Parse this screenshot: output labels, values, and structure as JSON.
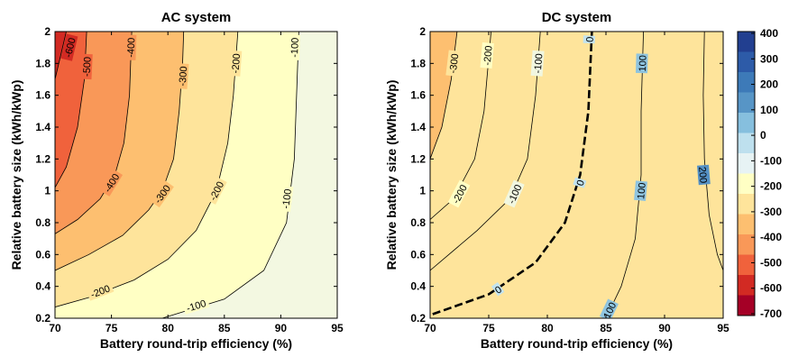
{
  "chart_data": [
    {
      "type": "contour",
      "title": "AC system",
      "xlabel": "Battery round-trip efficiency (%)",
      "ylabel": "Relative battery size (kWh/kWp)",
      "xlim": [
        70,
        95
      ],
      "ylim": [
        0.2,
        2
      ],
      "xticks": [
        "70",
        "75",
        "80",
        "85",
        "90",
        "95"
      ],
      "yticks": [
        "0.2",
        "0.4",
        "0.6",
        "0.8",
        "1",
        "1.2",
        "1.4",
        "1.6",
        "1.8",
        "2"
      ],
      "background_level_color": "#f3f8e1",
      "contours": [
        {
          "level": -100,
          "fill": "#ffffc4",
          "points": [
            [
              79.5,
              0.2
            ],
            [
              85,
              0.32
            ],
            [
              88.5,
              0.5
            ],
            [
              90.5,
              0.8
            ],
            [
              91.2,
              1.2
            ],
            [
              91.6,
              2.0
            ]
          ],
          "labels": [
            {
              "text": "-100",
              "x": 82.5,
              "y": 0.28
            },
            {
              "text": "-100",
              "x": 90.5,
              "y": 0.95
            },
            {
              "text": "-100",
              "x": 91.2,
              "y": 1.9
            }
          ]
        },
        {
          "level": -200,
          "fill": "#fee49b",
          "points": [
            [
              70,
              0.27
            ],
            [
              73,
              0.33
            ],
            [
              77,
              0.44
            ],
            [
              80,
              0.57
            ],
            [
              82.5,
              0.75
            ],
            [
              84.3,
              1.0
            ],
            [
              85.3,
              1.3
            ],
            [
              85.8,
              1.6
            ],
            [
              86.2,
              2.0
            ]
          ],
          "labels": [
            {
              "text": "-200",
              "x": 74,
              "y": 0.37
            },
            {
              "text": "-200",
              "x": 84.3,
              "y": 1.0
            },
            {
              "text": "-200",
              "x": 86.0,
              "y": 1.8
            }
          ]
        },
        {
          "level": -300,
          "fill": "#fdbf70",
          "points": [
            [
              70,
              0.5
            ],
            [
              73,
              0.6
            ],
            [
              76,
              0.72
            ],
            [
              78.3,
              0.88
            ],
            [
              79.5,
              1.0
            ],
            [
              80.5,
              1.2
            ],
            [
              81,
              1.5
            ],
            [
              81.3,
              1.8
            ],
            [
              81.4,
              2.0
            ]
          ],
          "labels": [
            {
              "text": "-300",
              "x": 79.5,
              "y": 0.98
            },
            {
              "text": "-300",
              "x": 81.3,
              "y": 1.72
            }
          ]
        },
        {
          "level": -400,
          "fill": "#f99858",
          "points": [
            [
              70,
              0.73
            ],
            [
              72,
              0.82
            ],
            [
              74,
              0.95
            ],
            [
              75.3,
              1.1
            ],
            [
              76.1,
              1.3
            ],
            [
              76.6,
              1.6
            ],
            [
              76.8,
              2.0
            ]
          ],
          "labels": [
            {
              "text": "-400",
              "x": 75,
              "y": 1.05
            },
            {
              "text": "-400",
              "x": 76.7,
              "y": 1.9
            }
          ]
        },
        {
          "level": -500,
          "fill": "#f0623c",
          "points": [
            [
              70,
              1.02
            ],
            [
              71,
              1.15
            ],
            [
              72,
              1.4
            ],
            [
              72.6,
              1.7
            ],
            [
              72.8,
              2.0
            ]
          ],
          "labels": [
            {
              "text": "-500",
              "x": 72.8,
              "y": 1.78
            }
          ]
        },
        {
          "level": -600,
          "fill": "#d22a23",
          "points": [
            [
              70,
              1.7
            ],
            [
              70.5,
              1.85
            ],
            [
              71,
              2.0
            ]
          ],
          "labels": [
            {
              "text": "-600",
              "x": 71.3,
              "y": 1.9
            }
          ]
        }
      ]
    },
    {
      "type": "contour",
      "title": "DC system",
      "xlabel": "Battery round-trip efficiency (%)",
      "ylabel": "Relative battery size (kWh/kWp)",
      "xlim": [
        70,
        95
      ],
      "ylim": [
        0.2,
        2
      ],
      "xticks": [
        "70",
        "75",
        "80",
        "85",
        "90",
        "95"
      ],
      "yticks": [
        "0.2",
        "0.4",
        "0.6",
        "0.8",
        "1",
        "1.2",
        "1.4",
        "1.6",
        "1.8",
        "2"
      ],
      "colorbar": {
        "ticks": [
          "400",
          "300",
          "200",
          "100",
          "0",
          "-100",
          "-200",
          "-300",
          "-400",
          "-500",
          "-600",
          "-700"
        ],
        "colors": [
          "#223f90",
          "#2d5ba8",
          "#3d7ab8",
          "#5795c6",
          "#86bfde",
          "#bee0ee",
          "#e7f3f4",
          "#ffffc4",
          "#fee49b",
          "#fdbf70",
          "#f99858",
          "#f0623c",
          "#d22a23",
          "#a50026"
        ]
      },
      "regions": [
        {
          "level": 200,
          "fill": "#5591c5",
          "points": [
            [
              93.4,
              2.0
            ],
            [
              93.3,
              1.6
            ],
            [
              93.4,
              1.2
            ],
            [
              93.8,
              0.85
            ],
            [
              94.5,
              0.6
            ],
            [
              95,
              0.5
            ]
          ],
          "side": "right",
          "labels": [
            {
              "text": "200",
              "x": 93.3,
              "y": 1.1
            }
          ]
        },
        {
          "level": 100,
          "fill": "#8fc4df",
          "points": [
            [
              88.2,
              2.0
            ],
            [
              88.0,
              1.5
            ],
            [
              88.0,
              1.1
            ],
            [
              87.5,
              0.7
            ],
            [
              86.3,
              0.4
            ],
            [
              85,
              0.2
            ]
          ],
          "side": "right",
          "labels": [
            {
              "text": "100",
              "x": 88.1,
              "y": 1.8
            },
            {
              "text": "100",
              "x": 88.0,
              "y": 1.0
            },
            {
              "text": "100",
              "x": 85.3,
              "y": 0.25
            }
          ]
        },
        {
          "level": 0,
          "fill": "#c2e3ef",
          "dashed": true,
          "points": [
            [
              83.8,
              2.0
            ],
            [
              83.5,
              1.5
            ],
            [
              82.8,
              1.1
            ],
            [
              81.5,
              0.8
            ],
            [
              79,
              0.55
            ],
            [
              75,
              0.35
            ],
            [
              70,
              0.22
            ]
          ],
          "side": "right",
          "labels": [
            {
              "text": "0",
              "x": 83.6,
              "y": 1.95
            },
            {
              "text": "0",
              "x": 82.8,
              "y": 1.05
            },
            {
              "text": "0",
              "x": 75.8,
              "y": 0.38
            }
          ]
        },
        {
          "level": -100,
          "fill": "#f1f7e0",
          "points": [
            [
              79.4,
              2.0
            ],
            [
              79.0,
              1.6
            ],
            [
              78.3,
              1.2
            ],
            [
              76.8,
              0.95
            ],
            [
              74,
              0.75
            ],
            [
              70,
              0.5
            ]
          ],
          "side": "right",
          "labels": [
            {
              "text": "-100",
              "x": 79.2,
              "y": 1.8
            },
            {
              "text": "-100",
              "x": 77.2,
              "y": 0.98
            }
          ]
        },
        {
          "level": -200,
          "fill": "#ffffc4",
          "points": [
            [
              75.2,
              2.0
            ],
            [
              74.6,
              1.5
            ],
            [
              73.8,
              1.2
            ],
            [
              72,
              0.95
            ],
            [
              70,
              0.82
            ]
          ],
          "side": "right",
          "labels": [
            {
              "text": "-200",
              "x": 74.9,
              "y": 1.85
            },
            {
              "text": "-200",
              "x": 72.5,
              "y": 0.98
            }
          ]
        },
        {
          "level": -300,
          "fill": "#fee49b",
          "points": [
            [
              72.3,
              2.0
            ],
            [
              71.8,
              1.7
            ],
            [
              71,
              1.4
            ],
            [
              70,
              1.2
            ]
          ],
          "side": "right",
          "labels": [
            {
              "text": "-300",
              "x": 72.0,
              "y": 1.8
            }
          ]
        },
        {
          "level": -400,
          "fill": "#fdbf70",
          "points": [],
          "side": "none",
          "labels": []
        }
      ],
      "background_level_color": "#fdbf70"
    }
  ]
}
